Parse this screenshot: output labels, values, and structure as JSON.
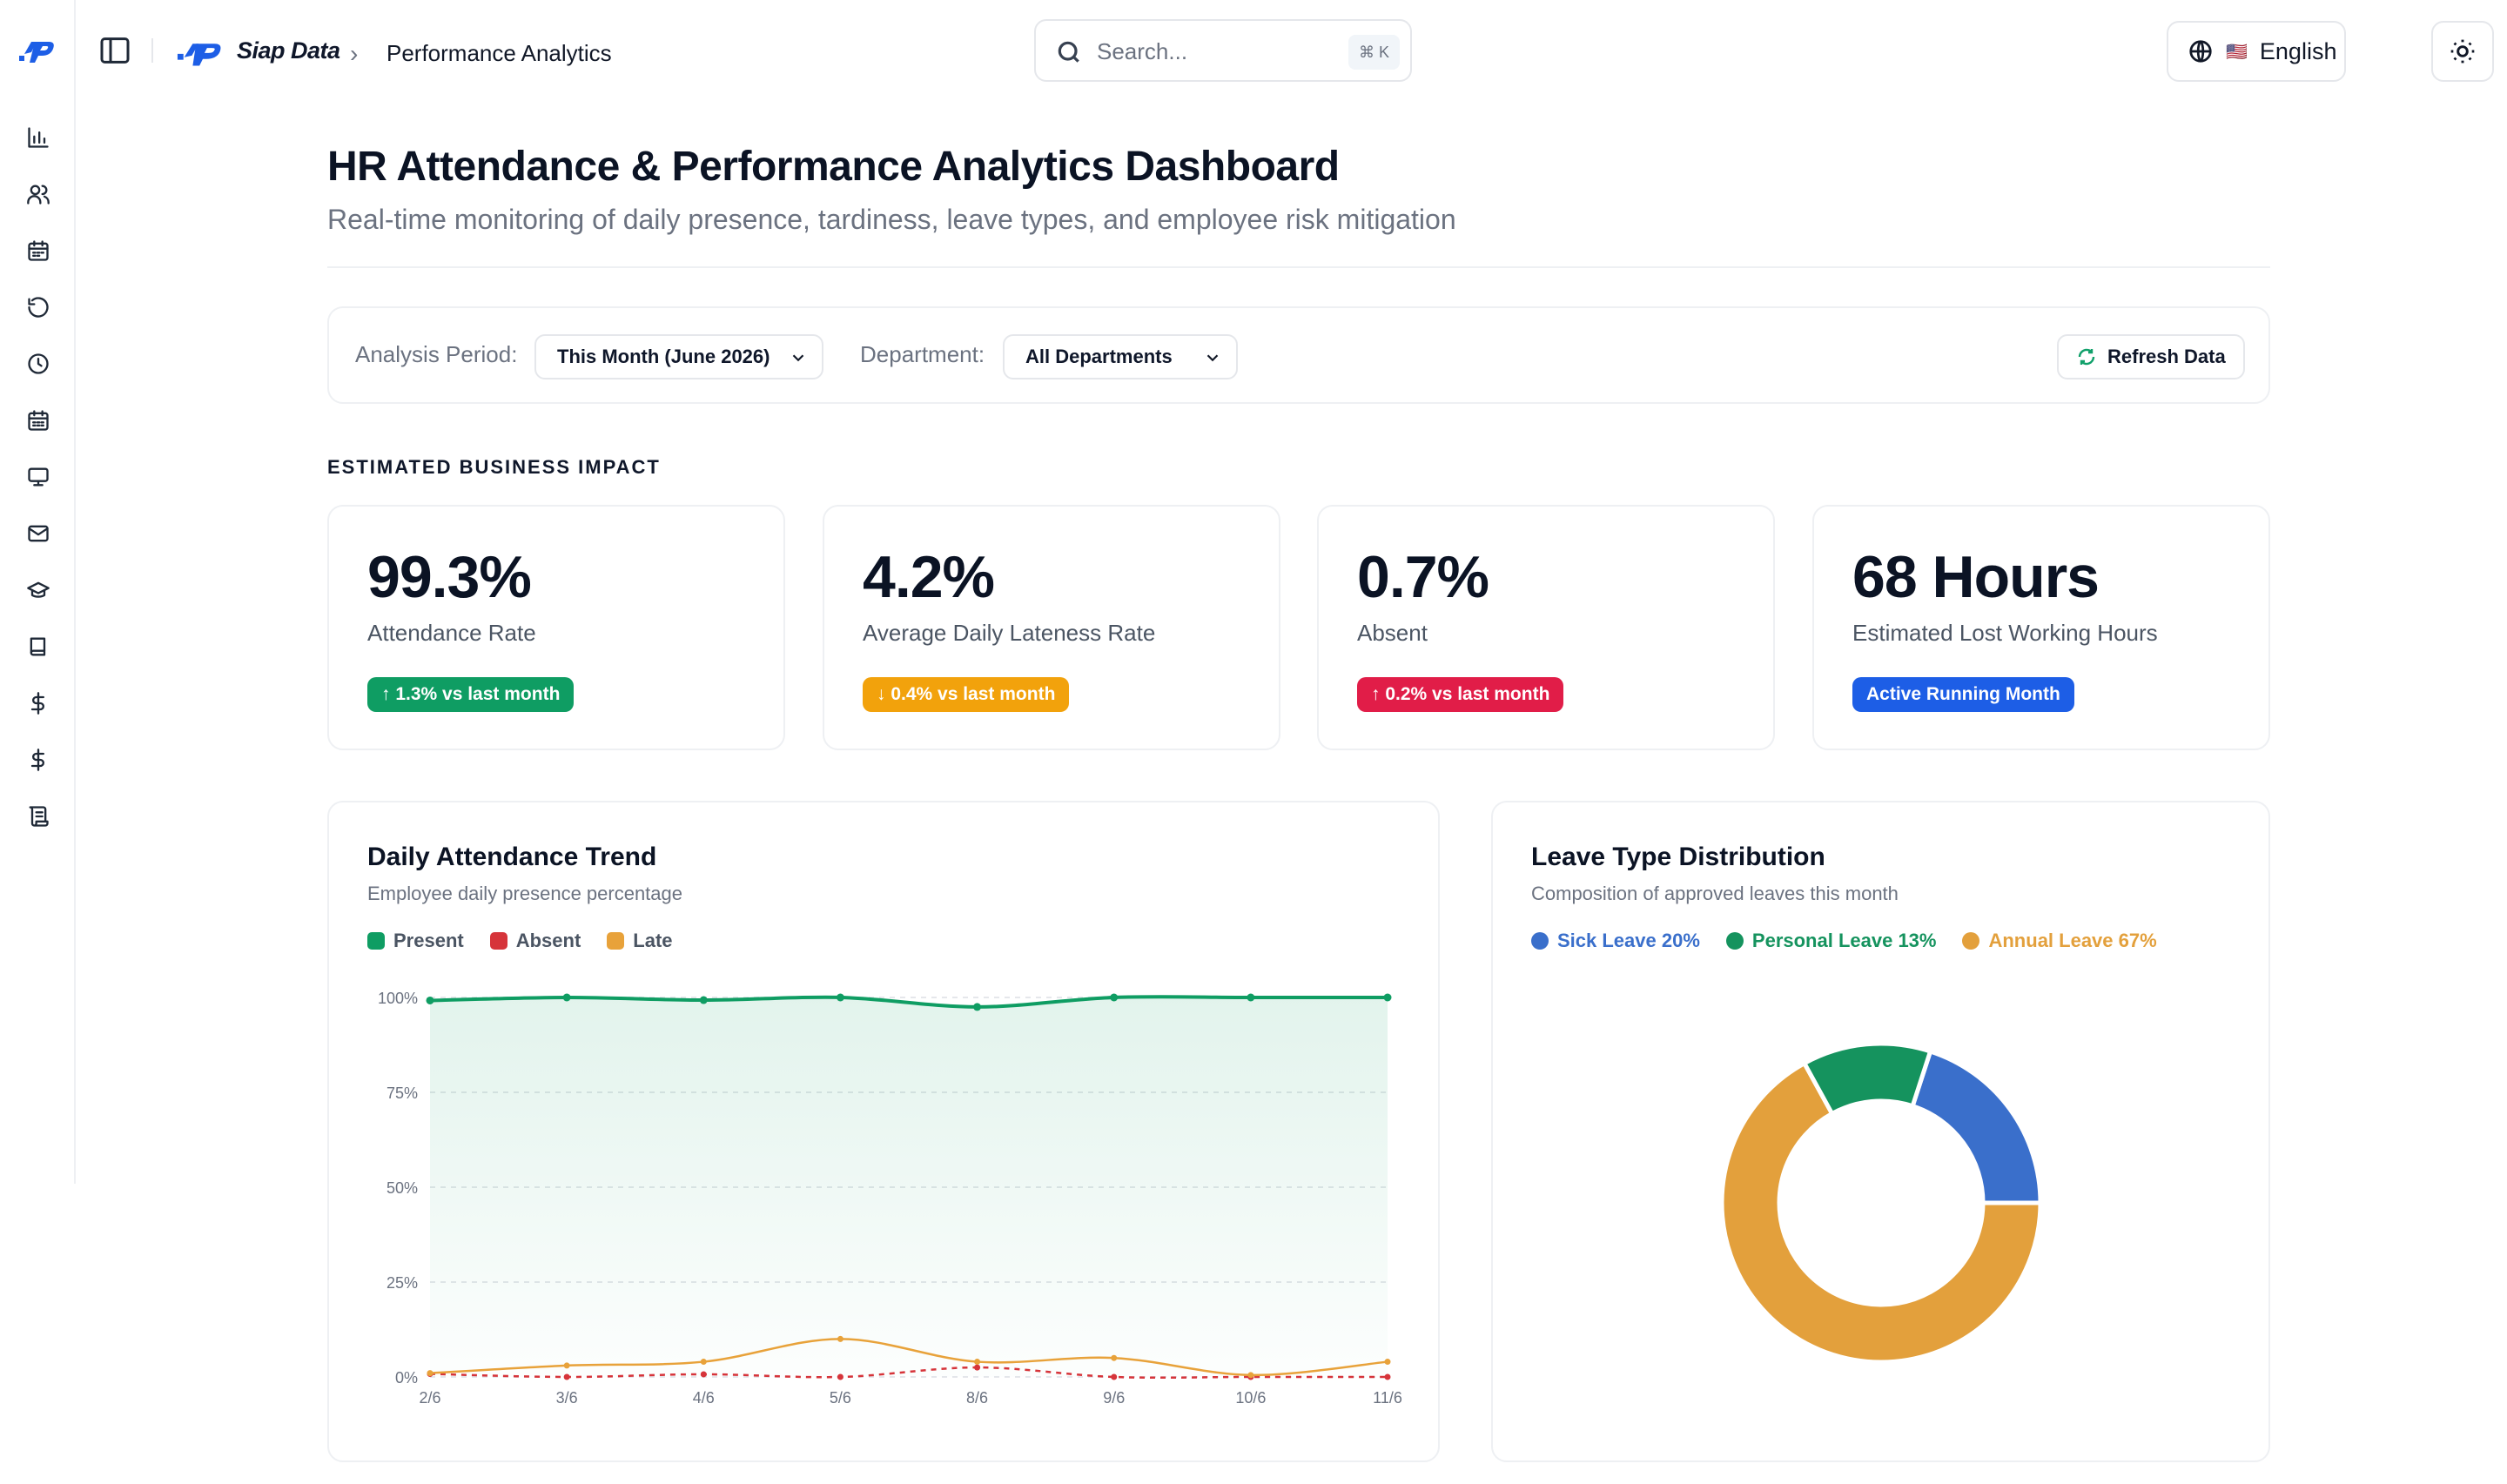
{
  "app": {
    "brand": "Siap Data",
    "breadcrumb": "Performance Analytics"
  },
  "search": {
    "placeholder": "Search...",
    "shortcut": "⌘ K"
  },
  "language": {
    "flag": "🇺🇸",
    "label": "English"
  },
  "sidebar": {
    "icons": [
      "bar-chart-icon",
      "users-icon",
      "calendar-icon",
      "history-icon",
      "clock-icon",
      "calendar-days-icon",
      "monitor-icon",
      "mail-icon",
      "graduation-cap-icon",
      "book-icon",
      "dollar-icon",
      "dollar-alt-icon",
      "scroll-icon"
    ]
  },
  "header": {
    "title": "HR Attendance & Performance Analytics Dashboard",
    "subtitle": "Real-time monitoring of daily presence, tardiness, leave types, and employee risk mitigation"
  },
  "filters": {
    "period_label": "Analysis Period:",
    "period_value": "This Month (June 2026)",
    "dept_label": "Department:",
    "dept_value": "All Departments",
    "refresh_label": "Refresh Data"
  },
  "impact": {
    "section_label": "ESTIMATED BUSINESS IMPACT",
    "cards": [
      {
        "value": "99.3%",
        "label": "Attendance Rate",
        "badge": "↑ 1.3% vs last month",
        "badge_color": "#0f9d63"
      },
      {
        "value": "4.2%",
        "label": "Average Daily Lateness Rate",
        "badge": "↓ 0.4% vs last month",
        "badge_color": "#f2a20c"
      },
      {
        "value": "0.7%",
        "label": "Absent",
        "badge": "↑ 0.2% vs last month",
        "badge_color": "#e11d48"
      },
      {
        "value": "68 Hours",
        "label": "Estimated Lost Working Hours",
        "badge": "Active Running Month",
        "badge_color": "#1d5ee6"
      }
    ]
  },
  "trend": {
    "title": "Daily Attendance Trend",
    "subtitle": "Employee daily presence percentage"
  },
  "leave": {
    "title": "Leave Type Distribution",
    "subtitle": "Composition of approved leaves this month"
  },
  "chart_data": [
    {
      "type": "line",
      "title": "Daily Attendance Trend",
      "x": [
        "2/6",
        "3/6",
        "4/6",
        "5/6",
        "8/6",
        "9/6",
        "10/6",
        "11/6"
      ],
      "y_ticks": [
        "0%",
        "25%",
        "50%",
        "75%",
        "100%"
      ],
      "ylim": [
        0,
        100
      ],
      "grid": true,
      "legend": "top-left",
      "series": [
        {
          "name": "Present",
          "color": "#0f9d63",
          "values": [
            99.2,
            100,
            99.3,
            100,
            97.5,
            100,
            100,
            100
          ]
        },
        {
          "name": "Absent",
          "color": "#d6343a",
          "values": [
            0.8,
            0,
            0.7,
            0,
            2.5,
            0,
            0,
            0
          ]
        },
        {
          "name": "Late",
          "color": "#e8a23a",
          "values": [
            1,
            3,
            4,
            10,
            4,
            5,
            0.5,
            4
          ]
        }
      ]
    },
    {
      "type": "pie",
      "title": "Leave Type Distribution",
      "legend": "top-left",
      "donut": true,
      "slices": [
        {
          "label": "Sick Leave 20%",
          "value": 20,
          "color": "#3a6fcb"
        },
        {
          "label": "Annual Leave 67%",
          "value": 67,
          "color": "#e3a03c"
        },
        {
          "label": "Personal Leave 13%",
          "value": 13,
          "color": "#15935e"
        }
      ]
    }
  ]
}
